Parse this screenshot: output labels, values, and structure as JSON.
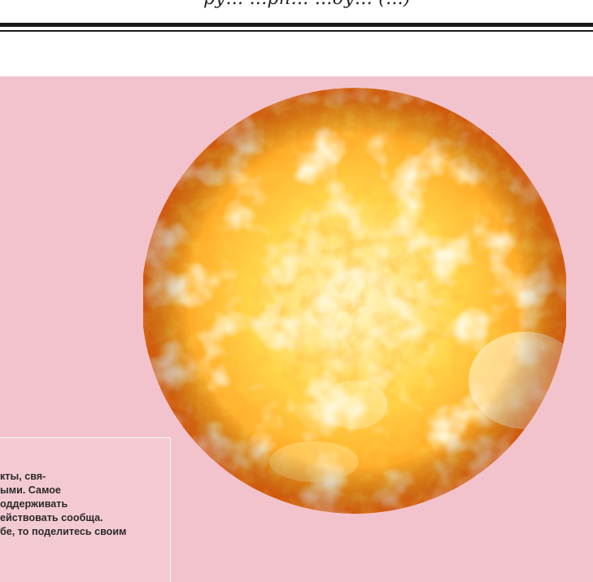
{
  "header": {
    "fragment": "ру... ...рн... ...ду... (...)"
  },
  "article": {
    "lines": [
      "кты, свя-",
      "ыми. Самое",
      "оддерживать",
      "ействовать сообща.",
      "бе, то поделитесь своим"
    ]
  },
  "image": {
    "subject": "sun",
    "colors": {
      "core": "#fff6c8",
      "light": "#ffd54a",
      "mid": "#ff9d1c",
      "dark": "#e8550e",
      "spot": "#c23a08"
    }
  }
}
